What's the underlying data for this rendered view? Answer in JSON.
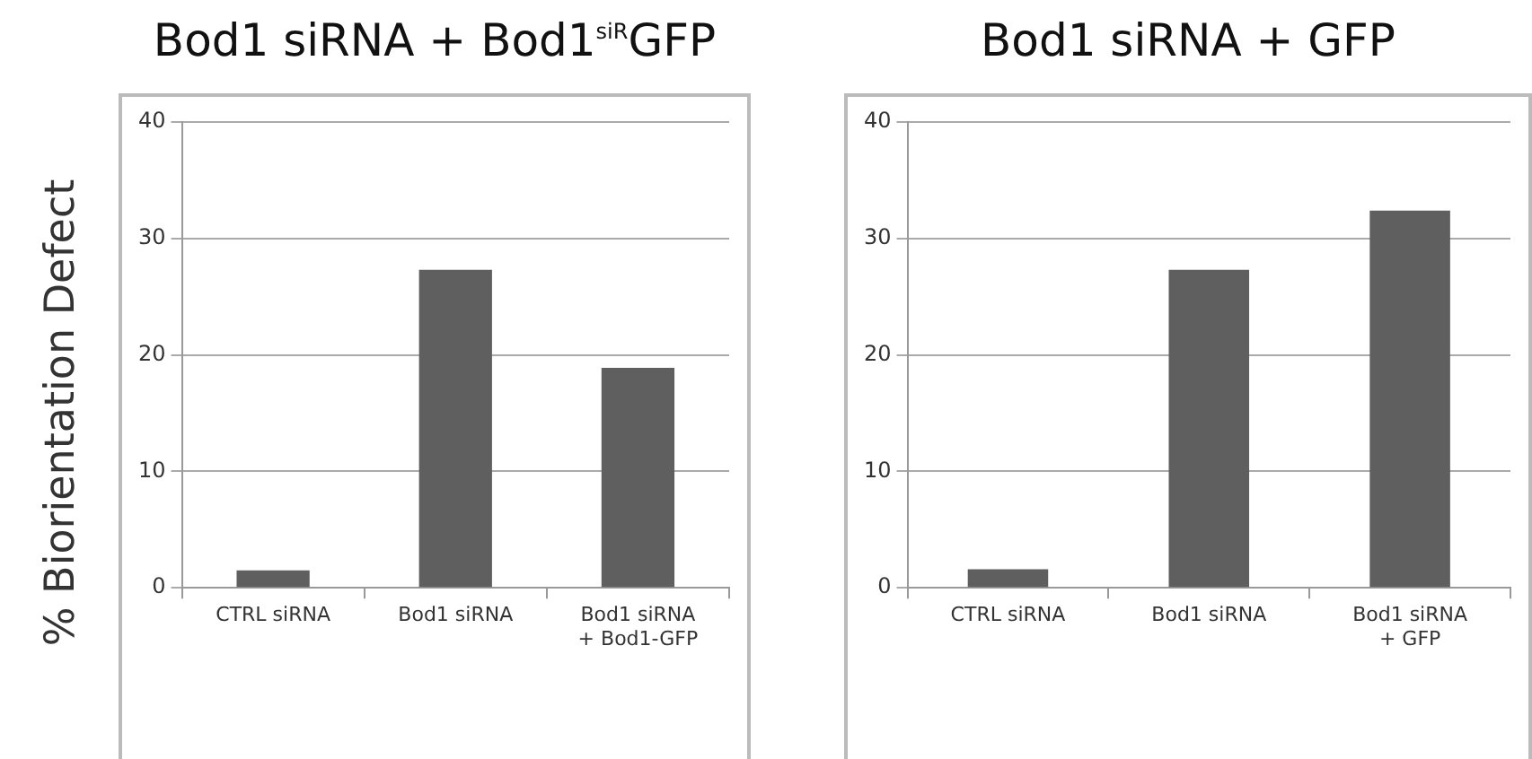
{
  "chart_data": [
    {
      "type": "bar",
      "title": "Bod1 siRNA + Bod1$^{siR}$GFP",
      "ylabel": "% Biorientation Defect",
      "categories": [
        "CTRL siRNA",
        "Bod1 siRNA",
        "Bod1 siRNA\n+ Bod1-GFP"
      ],
      "values": [
        1.5,
        27.3,
        18.9
      ],
      "color": "#5f5f5f",
      "ylim": [
        0,
        40
      ],
      "yticks": [
        0,
        10,
        20,
        30,
        40
      ],
      "grid": "y",
      "legend": false
    },
    {
      "type": "bar",
      "title": "Bod1 siRNA + GFP",
      "categories": [
        "CTRL siRNA",
        "Bod1 siRNA",
        "Bod1 siRNA\n+ GFP"
      ],
      "values": [
        1.6,
        27.3,
        32.4
      ],
      "color": "#5f5f5f",
      "ylim": [
        0,
        40
      ],
      "yticks": [
        0,
        10,
        20,
        30,
        40
      ],
      "grid": "y",
      "legend": false
    }
  ]
}
